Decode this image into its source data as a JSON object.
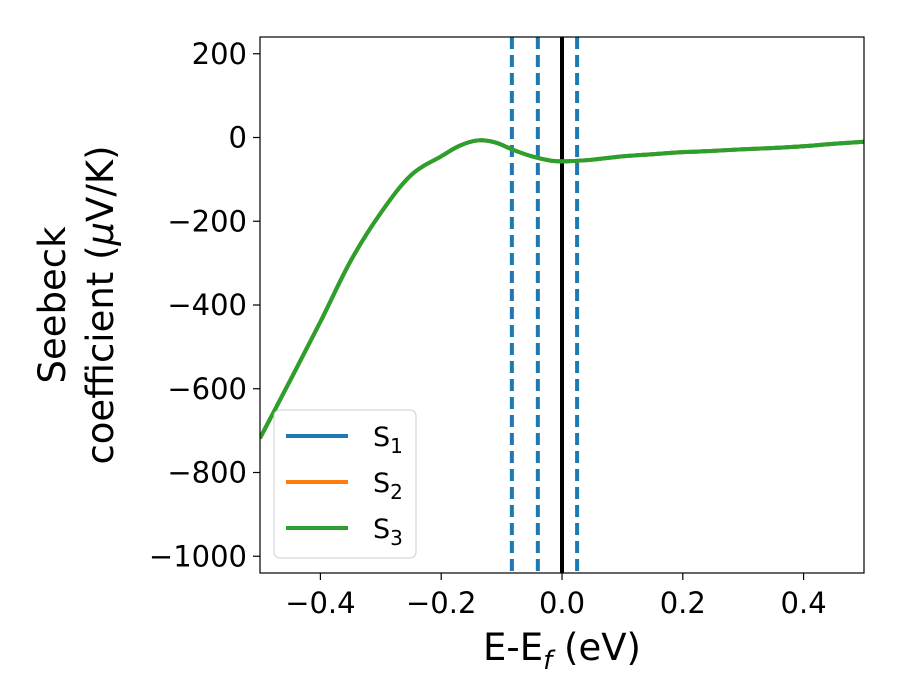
{
  "chart_data": {
    "type": "line",
    "xlabel": {
      "main": "E-E",
      "sub": "f",
      "suffix": " (eV)"
    },
    "ylabel": {
      "line1": "Seebeck",
      "line2_pre": "coefficient  (",
      "line2_mu": "μ",
      "line2_post": "V/K)"
    },
    "xlim": [
      -0.5,
      0.5
    ],
    "ylim": [
      -1040,
      240
    ],
    "xticks": [
      -0.4,
      -0.2,
      0.0,
      0.2,
      0.4
    ],
    "xtick_labels": [
      "−0.4",
      "−0.2",
      "0.0",
      "0.2",
      "0.4"
    ],
    "yticks": [
      200,
      0,
      -200,
      -400,
      -600,
      -800,
      -1000
    ],
    "ytick_labels": [
      "200",
      "0",
      "−200",
      "−400",
      "−600",
      "−800",
      "−1000"
    ],
    "grid": false,
    "legend_placement": "bottom-left",
    "x": [
      -0.5,
      -0.45,
      -0.4,
      -0.35,
      -0.3,
      -0.25,
      -0.2,
      -0.17,
      -0.14,
      -0.11,
      -0.08,
      -0.05,
      -0.02,
      0.0,
      0.02,
      0.05,
      0.1,
      0.15,
      0.2,
      0.25,
      0.3,
      0.35,
      0.4,
      0.45,
      0.5
    ],
    "series": [
      {
        "name": "S",
        "sub": "1",
        "color": "#1f77b4",
        "values": [
          -718,
          -580,
          -440,
          -295,
          -180,
          -90,
          -45,
          -20,
          -7,
          -12,
          -30,
          -45,
          -55,
          -57,
          -56,
          -53,
          -45,
          -40,
          -35,
          -32,
          -28,
          -25,
          -21,
          -15,
          -10
        ]
      },
      {
        "name": "S",
        "sub": "2",
        "color": "#ff7f0e",
        "values": [
          -718,
          -580,
          -440,
          -295,
          -180,
          -90,
          -45,
          -20,
          -7,
          -12,
          -30,
          -45,
          -55,
          -57,
          -56,
          -53,
          -45,
          -40,
          -35,
          -32,
          -28,
          -25,
          -21,
          -15,
          -10
        ]
      },
      {
        "name": "S",
        "sub": "3",
        "color": "#2ca02c",
        "values": [
          -718,
          -580,
          -440,
          -295,
          -180,
          -90,
          -45,
          -20,
          -7,
          -12,
          -30,
          -45,
          -55,
          -57,
          -56,
          -53,
          -45,
          -40,
          -35,
          -32,
          -28,
          -25,
          -21,
          -15,
          -10
        ]
      }
    ],
    "vlines": [
      {
        "x": -0.083,
        "style": "dashed",
        "color": "#1f77b4"
      },
      {
        "x": -0.04,
        "style": "dashed",
        "color": "#1f77b4"
      },
      {
        "x": 0.0,
        "style": "solid",
        "color": "#000000"
      },
      {
        "x": 0.025,
        "style": "dashed",
        "color": "#1f77b4"
      }
    ]
  }
}
